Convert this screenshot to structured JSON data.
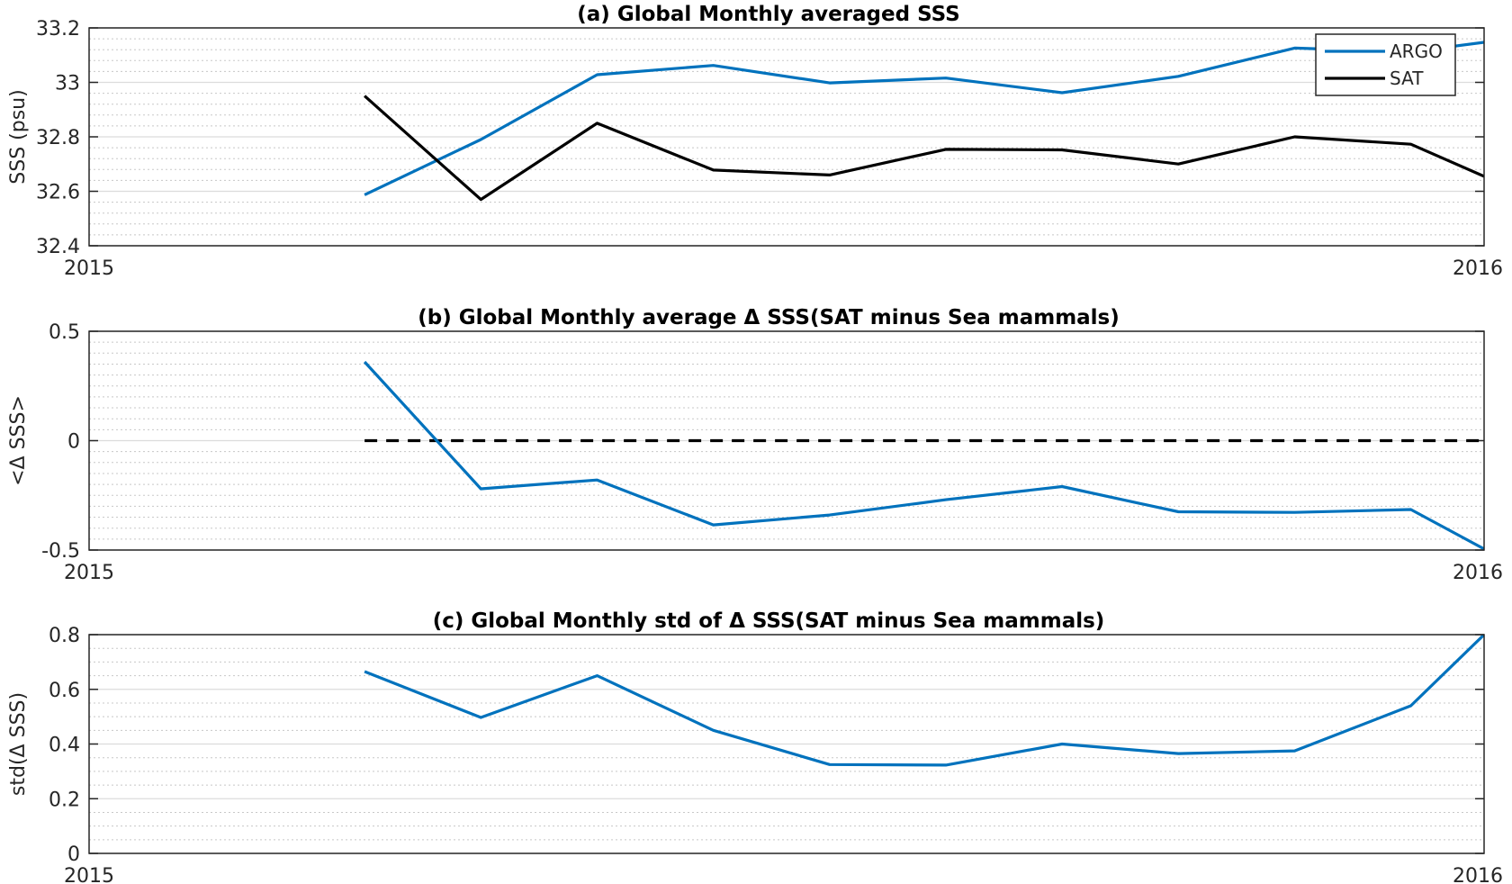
{
  "chart_data": [
    {
      "type": "line",
      "title": "(a) Global Monthly averaged SSS",
      "xlabel": "",
      "ylabel": "SSS (psu)",
      "xlim": [
        0,
        12
      ],
      "ylim": [
        32.4,
        33.2
      ],
      "x_tick_labels": [
        "2015",
        "2016"
      ],
      "y_ticks": [
        32.4,
        32.6,
        32.8,
        33,
        33.2
      ],
      "y_tick_labels": [
        "32.4",
        "32.6",
        "32.8",
        "33",
        "33.2"
      ],
      "grid": true,
      "legend": "top-right",
      "x": [
        2.37,
        3.37,
        4.37,
        5.37,
        6.37,
        7.37,
        8.37,
        9.37,
        10.37,
        11.37,
        12
      ],
      "series": [
        {
          "name": "ARGO",
          "color": "#0072BD",
          "values": [
            32.587,
            32.79,
            33.028,
            33.062,
            32.998,
            33.016,
            32.962,
            33.022,
            33.126,
            33.112,
            33.147
          ]
        },
        {
          "name": "SAT",
          "color": "#000000",
          "values": [
            32.95,
            32.57,
            32.85,
            32.678,
            32.66,
            32.754,
            32.752,
            32.7,
            32.8,
            32.773,
            32.655
          ]
        }
      ]
    },
    {
      "type": "line",
      "title": "(b) Global Monthly average Δ SSS(SAT minus Sea mammals)",
      "xlabel": "",
      "ylabel": "<Δ SSS>",
      "xlim": [
        0,
        12
      ],
      "ylim": [
        -0.5,
        0.5
      ],
      "x_tick_labels": [
        "2015",
        "2016"
      ],
      "y_ticks": [
        -0.5,
        0,
        0.5
      ],
      "y_tick_labels": [
        "-0.5",
        "0",
        "0.5"
      ],
      "grid": true,
      "x": [
        2.37,
        3.37,
        4.37,
        5.37,
        6.37,
        7.37,
        8.37,
        9.37,
        10.37,
        11.37,
        12
      ],
      "series": [
        {
          "color": "#0072BD",
          "values": [
            0.36,
            -0.22,
            -0.18,
            -0.385,
            -0.34,
            -0.27,
            -0.21,
            -0.325,
            -0.328,
            -0.315,
            -0.495
          ]
        }
      ],
      "reference_line": {
        "y": 0,
        "x_from": 2.37,
        "x_to": 12,
        "style": "dashed",
        "color": "#000000"
      }
    },
    {
      "type": "line",
      "title": "(c) Global Monthly std of Δ SSS(SAT minus Sea mammals)",
      "xlabel": "",
      "ylabel": "std(Δ SSS)",
      "xlim": [
        0,
        12
      ],
      "ylim": [
        0,
        0.8
      ],
      "x_tick_labels": [
        "2015",
        "2016"
      ],
      "y_ticks": [
        0,
        0.2,
        0.4,
        0.6,
        0.8
      ],
      "y_tick_labels": [
        "0",
        "0.2",
        "0.4",
        "0.6",
        "0.8"
      ],
      "grid": true,
      "x": [
        2.37,
        3.37,
        4.37,
        5.37,
        6.37,
        7.37,
        8.37,
        9.37,
        10.37,
        11.37,
        12
      ],
      "series": [
        {
          "color": "#0072BD",
          "values": [
            0.665,
            0.497,
            0.65,
            0.45,
            0.325,
            0.323,
            0.4,
            0.365,
            0.375,
            0.54,
            0.8
          ]
        }
      ]
    }
  ]
}
